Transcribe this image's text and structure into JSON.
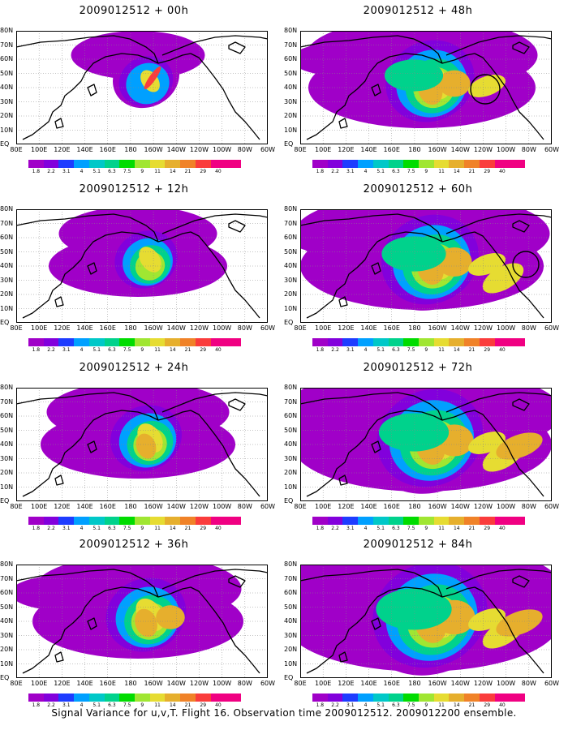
{
  "panels": [
    {
      "title": "2009012512 + 00h",
      "level": 0
    },
    {
      "title": "2009012512 + 48h",
      "level": 4
    },
    {
      "title": "2009012512 + 12h",
      "level": 1
    },
    {
      "title": "2009012512 + 60h",
      "level": 5
    },
    {
      "title": "2009012512 + 24h",
      "level": 2
    },
    {
      "title": "2009012512 + 72h",
      "level": 6
    },
    {
      "title": "2009012512 + 36h",
      "level": 3
    },
    {
      "title": "2009012512 + 84h",
      "level": 7
    }
  ],
  "lat_labels": [
    "80N",
    "70N",
    "60N",
    "50N",
    "40N",
    "30N",
    "20N",
    "10N",
    "EQ"
  ],
  "lon_labels": [
    "80E",
    "100E",
    "120E",
    "140E",
    "160E",
    "180",
    "160W",
    "140W",
    "120W",
    "100W",
    "80W",
    "60W"
  ],
  "colorbar": {
    "labels": [
      "1.8",
      "2.2",
      "3.1",
      "4",
      "5.1",
      "6.3",
      "7.5",
      "9",
      "11",
      "14",
      "21",
      "29",
      "40"
    ],
    "colors": [
      "#a000c8",
      "#8200dc",
      "#1e3cff",
      "#00a0ff",
      "#00c8c8",
      "#00d28c",
      "#00dc00",
      "#a0e632",
      "#e6dc32",
      "#e6af2d",
      "#f08228",
      "#fa3c3c",
      "#f00082"
    ]
  },
  "footer": "Signal Variance for u,v,T. Flight 16. Observation time 2009012512. 2009012200 ensemble."
}
